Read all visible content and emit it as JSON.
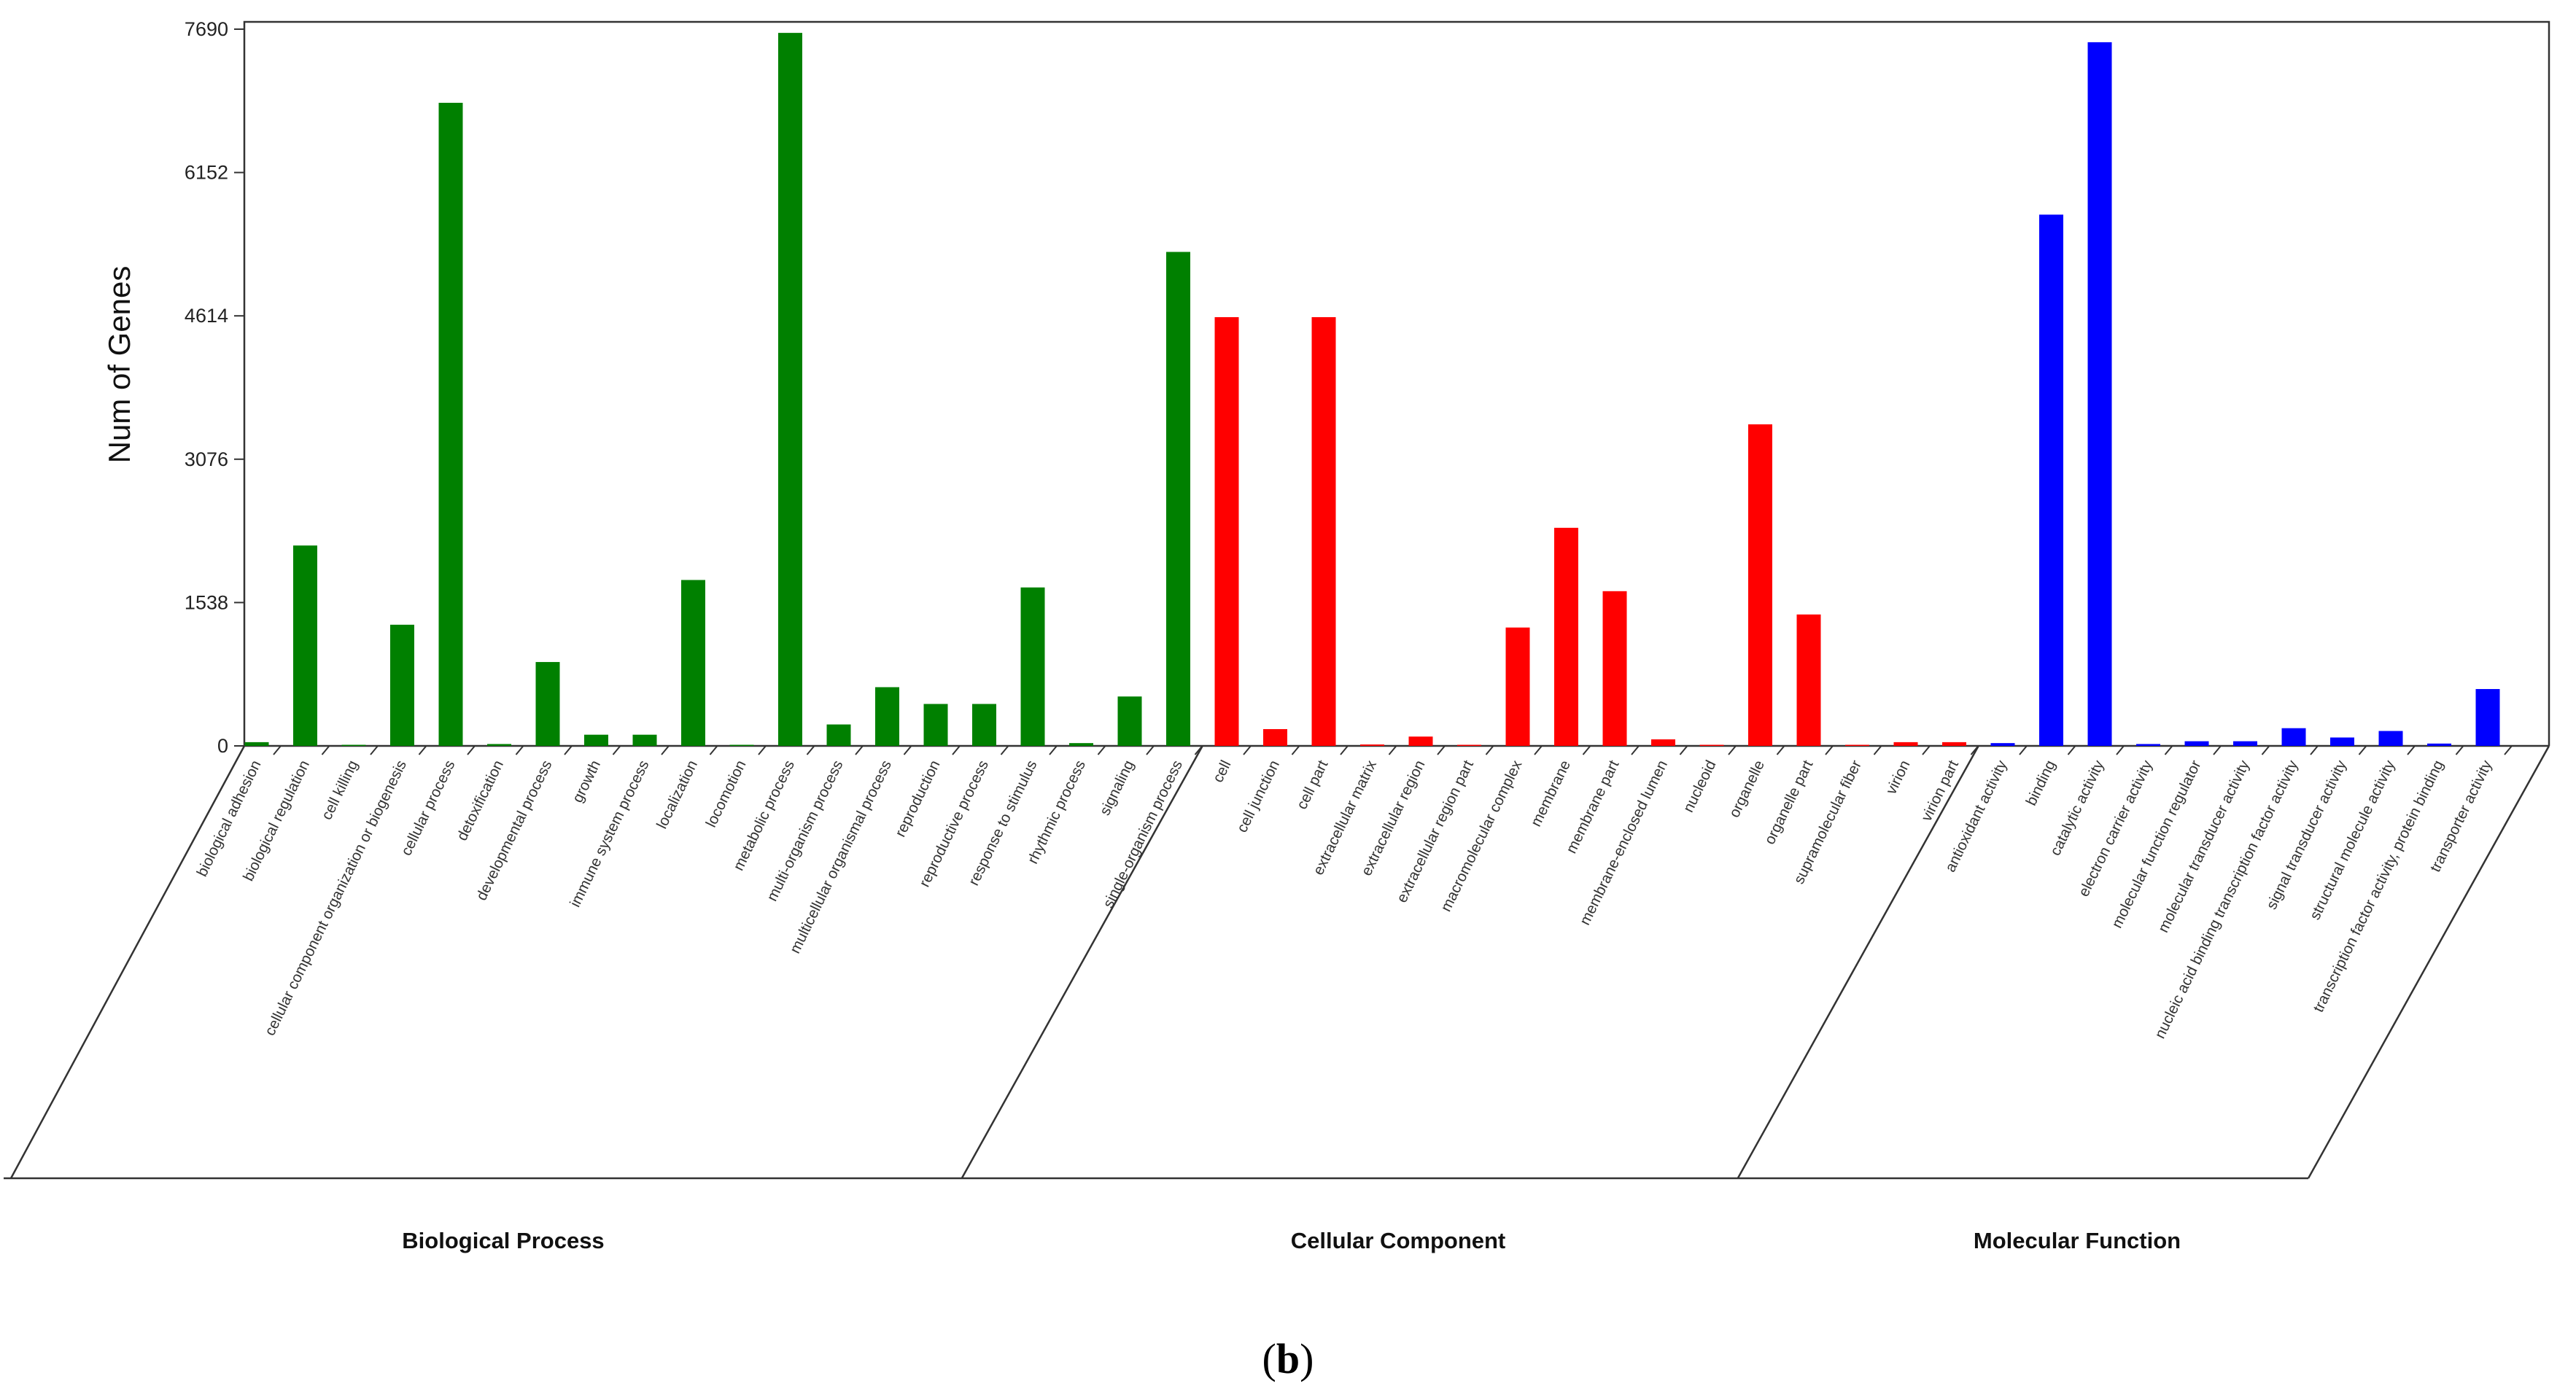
{
  "chart_data": {
    "type": "bar",
    "ylabel": "Num of Genes",
    "ylim": [
      0,
      7690
    ],
    "yticks": [
      "0",
      "1538",
      "3076",
      "4614",
      "6152",
      "7690"
    ],
    "caption_prefix": "(",
    "caption_letter": "b",
    "caption_suffix": ")",
    "groups": [
      {
        "name": "Biological Process",
        "color": "#008000",
        "categories": [
          "biological adhesion",
          "biological regulation",
          "cell killing",
          "cellular component organization or biogenesis",
          "cellular process",
          "detoxification",
          "developmental process",
          "growth",
          "immune system process",
          "localization",
          "locomotion",
          "metabolic process",
          "multi-organism process",
          "multicellular organismal process",
          "reproduction",
          "reproductive process",
          "response to stimulus",
          "rhythmic process",
          "signaling",
          "single-organism process"
        ],
        "values": [
          40,
          2150,
          5,
          1300,
          6900,
          20,
          900,
          120,
          120,
          1780,
          5,
          7650,
          230,
          630,
          450,
          450,
          1700,
          30,
          530,
          5300
        ]
      },
      {
        "name": "Cellular Component",
        "color": "#ff0000",
        "categories": [
          "cell",
          "cell junction",
          "cell part",
          "extracellular matrix",
          "extracellular region",
          "extracellular region part",
          "macromolecular complex",
          "membrane",
          "membrane part",
          "membrane-enclosed lumen",
          "nucleoid",
          "organelle",
          "organelle part",
          "supramolecular fiber",
          "virion",
          "virion part"
        ],
        "values": [
          4600,
          180,
          4600,
          15,
          100,
          5,
          1270,
          2340,
          1660,
          70,
          5,
          3450,
          1410,
          10,
          40,
          40
        ]
      },
      {
        "name": "Molecular Function",
        "color": "#0000ff",
        "categories": [
          "antioxidant activity",
          "binding",
          "catalytic activity",
          "electron carrier activity",
          "molecular function regulator",
          "molecular transducer activity",
          "nucleic acid binding transcription factor activity",
          "signal transducer activity",
          "structural molecule activity",
          "transcription factor activity, protein binding",
          "transporter activity"
        ],
        "values": [
          30,
          5700,
          7550,
          20,
          50,
          50,
          190,
          90,
          160,
          25,
          610
        ]
      }
    ]
  }
}
